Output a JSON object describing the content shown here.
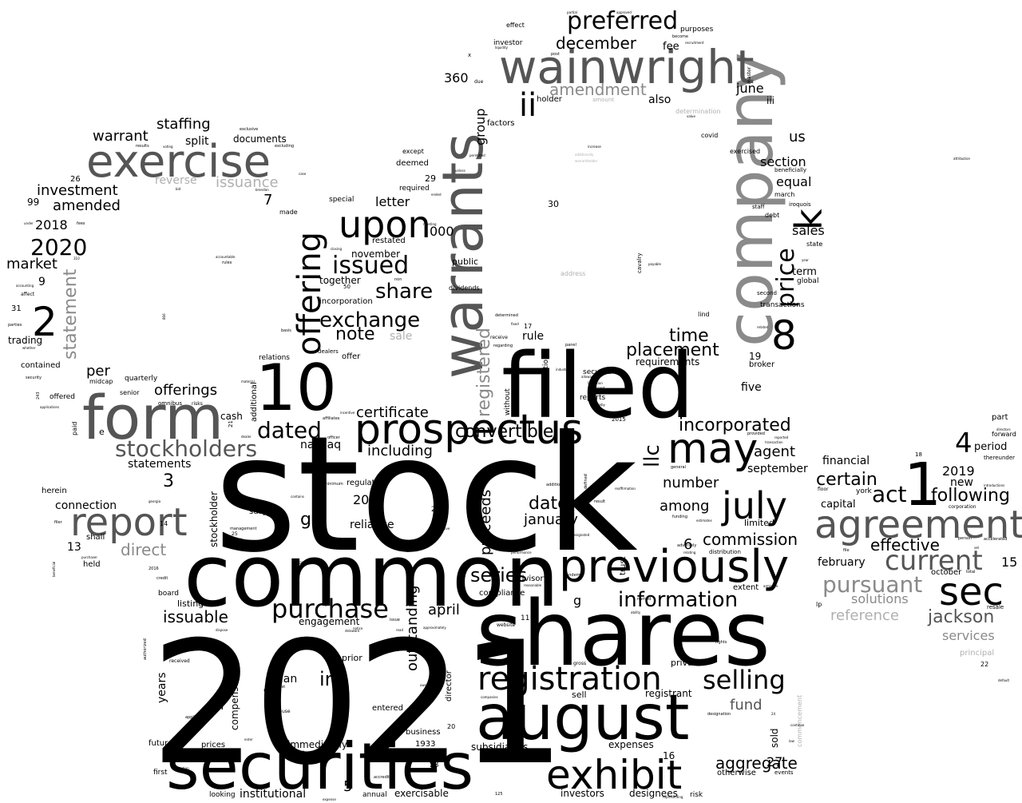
{
  "words": {
    "stock": "stock",
    "y2021": "2021",
    "common": "common",
    "shares": "shares",
    "filed": "filed",
    "august": "august",
    "securities": "securities",
    "company": "company",
    "warrants": "warrants",
    "wainwright": "wainwright",
    "form": "form",
    "exercise": "exercise",
    "prospectus": "prospectus",
    "previously": "previously",
    "agreement": "agreement",
    "registration": "registration",
    "exhibit": "exhibit",
    "sec": "sec",
    "may": "may",
    "july": "july",
    "report": "report",
    "ten": "10",
    "one": "1",
    "upon": "upon",
    "offering": "offering",
    "preferred": "preferred",
    "eight": "8",
    "ii": "ii",
    "issued": "issued",
    "current": "current",
    "purchase": "purchase",
    "selling": "selling",
    "k": "k",
    "dated": "dated",
    "stockholders": "stockholders",
    "two": "2",
    "price": "price",
    "year2020": "2020",
    "four": "4",
    "placement": "placement",
    "information": "information",
    "exchange": "exchange",
    "share": "share",
    "pursuant": "pursuant",
    "jackson": "jackson",
    "act": "act",
    "certain": "certain",
    "following": "following",
    "effective": "effective",
    "incorporated": "incorporated",
    "series": "series",
    "inc": "inc",
    "note": "note",
    "time": "time",
    "december": "december",
    "amendment": "amendment",
    "registered": "registered",
    "statement": "statement",
    "issuable": "issuable",
    "direct": "direct",
    "convertible": "convertible",
    "commission": "commission",
    "llc": "llc",
    "offerings": "offerings",
    "investment": "investment",
    "amended": "amended",
    "warrant": "warrant",
    "staffing": "staffing",
    "issuance": "issuance",
    "aggregate": "aggregate",
    "date": "date",
    "january": "january",
    "proceeds": "proceeds",
    "certificate": "certificate",
    "including": "including",
    "outstanding": "outstanding",
    "reference": "reference",
    "solutions": "solutions",
    "services": "services",
    "market": "market",
    "fund": "fund",
    "april": "april",
    "number": "number",
    "among": "among",
    "agent": "agent",
    "september": "september",
    "financial": "financial",
    "capital": "capital",
    "new": "new",
    "year2019": "2019",
    "period": "period",
    "february": "february",
    "october": "october",
    "section": "section",
    "equal": "equal",
    "sales": "sales",
    "term": "term",
    "us": "us",
    "june": "june",
    "also": "also",
    "iii": "iii",
    "fee": "fee",
    "group": "group",
    "n360": "360",
    "holder": "holder",
    "letter": "letter",
    "n000": "000",
    "november": "november",
    "together": "together",
    "incorporation": "incorporation",
    "sale": "sale",
    "rule": "rule",
    "requirements": "requirements",
    "five": "five",
    "broker": "broker",
    "nasdaq": "nasdaq",
    "gg": "gg",
    "y2017": "2017",
    "reliance": "reliance",
    "regulation": "regulation",
    "connection": "connection",
    "statements": "statements",
    "per": "per",
    "quarterly": "quarterly",
    "three": "3",
    "y2018": "2018",
    "nine": "9",
    "n99": "99",
    "trading": "trading",
    "contained": "contained",
    "offered": "offered",
    "paid": "paid",
    "herein": "herein",
    "shall": "shall",
    "held": "held",
    "n13": "13",
    "cash": "cash",
    "subject": "subject",
    "stockholder": "stockholder",
    "compensation": "compensation",
    "years": "years",
    "plan": "plan",
    "n12": "12",
    "future": "future",
    "prices": "prices",
    "first": "first",
    "looking": "looking",
    "institutional": "institutional",
    "five_n": "5",
    "annual": "annual",
    "exercisable": "exercisable",
    "investors": "investors",
    "designees": "designees",
    "risk": "risk",
    "otherwise": "otherwise",
    "n27": "27",
    "events": "events",
    "sold": "sold",
    "n16": "16",
    "expenses": "expenses",
    "subsidiaries": "subsidiaries",
    "immediately": "immediately",
    "business": "business",
    "n1933": "1933",
    "entered": "entered",
    "director": "director",
    "private": "private",
    "registrant": "registrant",
    "sell": "sell",
    "listing": "listing",
    "board": "board",
    "engagement": "engagement",
    "prior": "prior",
    "advisory": "advisory",
    "compliance": "compliance",
    "g": "g",
    "six": "6",
    "extent": "extent",
    "limited": "limited",
    "distribution": "distribution",
    "trust": "trust",
    "secured": "secured",
    "reports": "reports",
    "without": "without",
    "exemption": "exemption",
    "senior": "senior",
    "midcap": "midcap",
    "additional": "additional",
    "relations": "relations",
    "offer": "offer",
    "dealers": "dealers",
    "public": "public",
    "restated": "restated",
    "dividends": "dividends",
    "special": "special",
    "required": "required",
    "deemed": "deemed",
    "except": "except",
    "factors": "factors",
    "investor": "investor",
    "effect": "effect",
    "purposes": "purposes",
    "determination": "determination",
    "address": "address",
    "covid": "covid",
    "exercised": "exercised",
    "beneficially": "beneficially",
    "march": "march",
    "staff": "staff",
    "debt": "debt",
    "iroquois": "iroquois",
    "state": "state",
    "global": "global",
    "transactions": "transactions",
    "second": "second",
    "lind": "lind",
    "cavalry": "cavalry",
    "seven": "7",
    "made": "made",
    "reverse": "reverse",
    "split": "split",
    "documents": "documents",
    "n26": "26",
    "n29": "29",
    "n30": "30",
    "n19": "19",
    "n15": "15",
    "n14": "14",
    "n17": "17",
    "n11": "11",
    "n18": "18",
    "n20": "20",
    "n23": "23",
    "n28": "28",
    "n22": "22",
    "n31": "31",
    "n50": "50",
    "e": "e",
    "c": "c",
    "part": "part",
    "forward": "forward",
    "thereunder": "thereunder",
    "york": "york",
    "floor": "floor",
    "lp": "lp",
    "principal": "principal",
    "resale": "resale",
    "affect": "affect",
    "accounting": "accounting",
    "parties": "parties",
    "security": "security",
    "whether": "whether",
    "rules": "rules",
    "results": "results",
    "exclusive": "exclusive",
    "excluding": "excluding",
    "closing": "closing",
    "basis": "basis",
    "incentive": "incentive",
    "affiliates": "affiliates",
    "officer": "officer",
    "risks": "risks",
    "omnibus": "omnibus",
    "promulgated": "promulgated",
    "dealer": "dealer",
    "management": "management",
    "represents": "represents",
    "received": "received",
    "authorized": "authorized",
    "credit": "credit",
    "applicable": "applicable",
    "cause": "cause",
    "interest": "interest",
    "delaware": "delaware",
    "notice": "notice",
    "issue": "issue",
    "website": "website",
    "equity": "equity",
    "addition": "addition",
    "result": "result",
    "defined": "defined",
    "funding": "funding",
    "general": "general",
    "pandemic": "pandemic",
    "ability": "ability",
    "named": "named",
    "gross": "gross",
    "rights": "rights",
    "designation": "designation",
    "corporation": "corporation",
    "accelerated": "accelerated",
    "person": "person",
    "file": "file",
    "total": "total",
    "due": "due",
    "x": "x",
    "amount": "amount",
    "liquidity": "liquidity",
    "post": "post",
    "master": "master",
    "become": "become",
    "partial": "partial",
    "approved": "approved",
    "default": "default",
    "commencement": "commencement",
    "panel": "panel",
    "determined": "determined",
    "receive": "receive",
    "regarding": "regarding",
    "fixed": "fixed",
    "non": "non",
    "provided": "provided",
    "reported": "reported",
    "transaction": "transaction",
    "adversely": "adversely",
    "estimates": "estimates",
    "relating": "relating",
    "checks": "checks",
    "b": "b",
    "use": "use",
    "accredited": "accredited",
    "expense": "expense",
    "representing": "representing",
    "n125": "125",
    "n2016": "2016",
    "n2015": "2015",
    "n25": "25",
    "n21": "21",
    "n24": "24",
    "n243": "243",
    "n866": "866",
    "n310": "310",
    "n62": "62",
    "minimum": "minimum",
    "contains": "contains",
    "georgia": "georgia",
    "filer": "filer",
    "purchaser": "purchaser",
    "beneficial": "beneficial",
    "material": "material",
    "warrantholder": "warrantholder",
    "allowance": "allowance",
    "limitation": "limitation",
    "represent": "represent",
    "hereby": "hereby",
    "industry": "industry",
    "executive": "executive",
    "ownership": "ownership",
    "companies": "companies",
    "approximately": "approximately",
    "dispose": "dispose",
    "power": "power",
    "read": "read",
    "million": "million",
    "enter": "enter",
    "annual_meeting": "meeting",
    "bid": "bid",
    "brendan": "brendan",
    "case": "case",
    "unless": "unless",
    "ended": "ended",
    "permitted": "permitted",
    "additionally": "additionally",
    "increase": "increase",
    "attribution": "attribution",
    "directors": "directors",
    "introductions": "introductions",
    "reaffirmation": "reaffirmation",
    "recruitment": "recruitment",
    "value": "value",
    "payable": "payable",
    "year": "year",
    "related": "related",
    "armistice": "armistice",
    "continue": "continue",
    "law": "law",
    "designated": "designated",
    "performance": "performance",
    "reasonable": "reasonable",
    "applications": "applications",
    "accountable": "accountable",
    "fees": "fees",
    "under": "under",
    "voting": "voting",
    "flotation": "flotation",
    "set": "set"
  }
}
